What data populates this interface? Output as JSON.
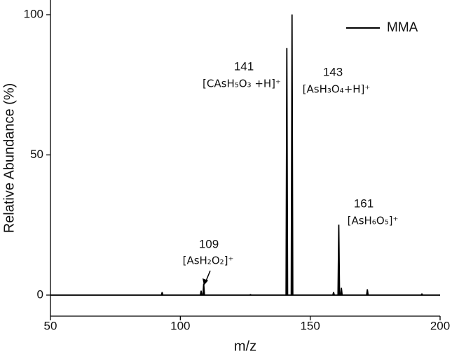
{
  "chart_data": {
    "type": "stem",
    "x_label": "m/z",
    "y_label": "Relative Abundance (%)",
    "xlim": [
      50,
      200
    ],
    "ylim": [
      -7.5,
      105
    ],
    "xticks": [
      50,
      100,
      150,
      200
    ],
    "yticks": [
      0,
      50,
      100
    ],
    "series": [
      {
        "name": "MMA",
        "color": "#000000",
        "x": [
          93,
          108,
          109,
          127,
          141,
          143,
          159,
          161,
          162,
          172,
          193
        ],
        "values": [
          1,
          1.5,
          4,
          0.3,
          88,
          100,
          1,
          25,
          2.5,
          2,
          0.5
        ]
      }
    ],
    "legend": "upper right",
    "annotations": [
      {
        "label": "141",
        "formula": "[CAsH₅O₃ +H]⁺"
      },
      {
        "label": "143",
        "formula": "[AsH₃O₄+H]⁺"
      },
      {
        "label": "161",
        "formula": "[AsH₆O₅]⁺"
      },
      {
        "label": "109",
        "formula": "[AsH₂O₂]⁺"
      }
    ]
  }
}
